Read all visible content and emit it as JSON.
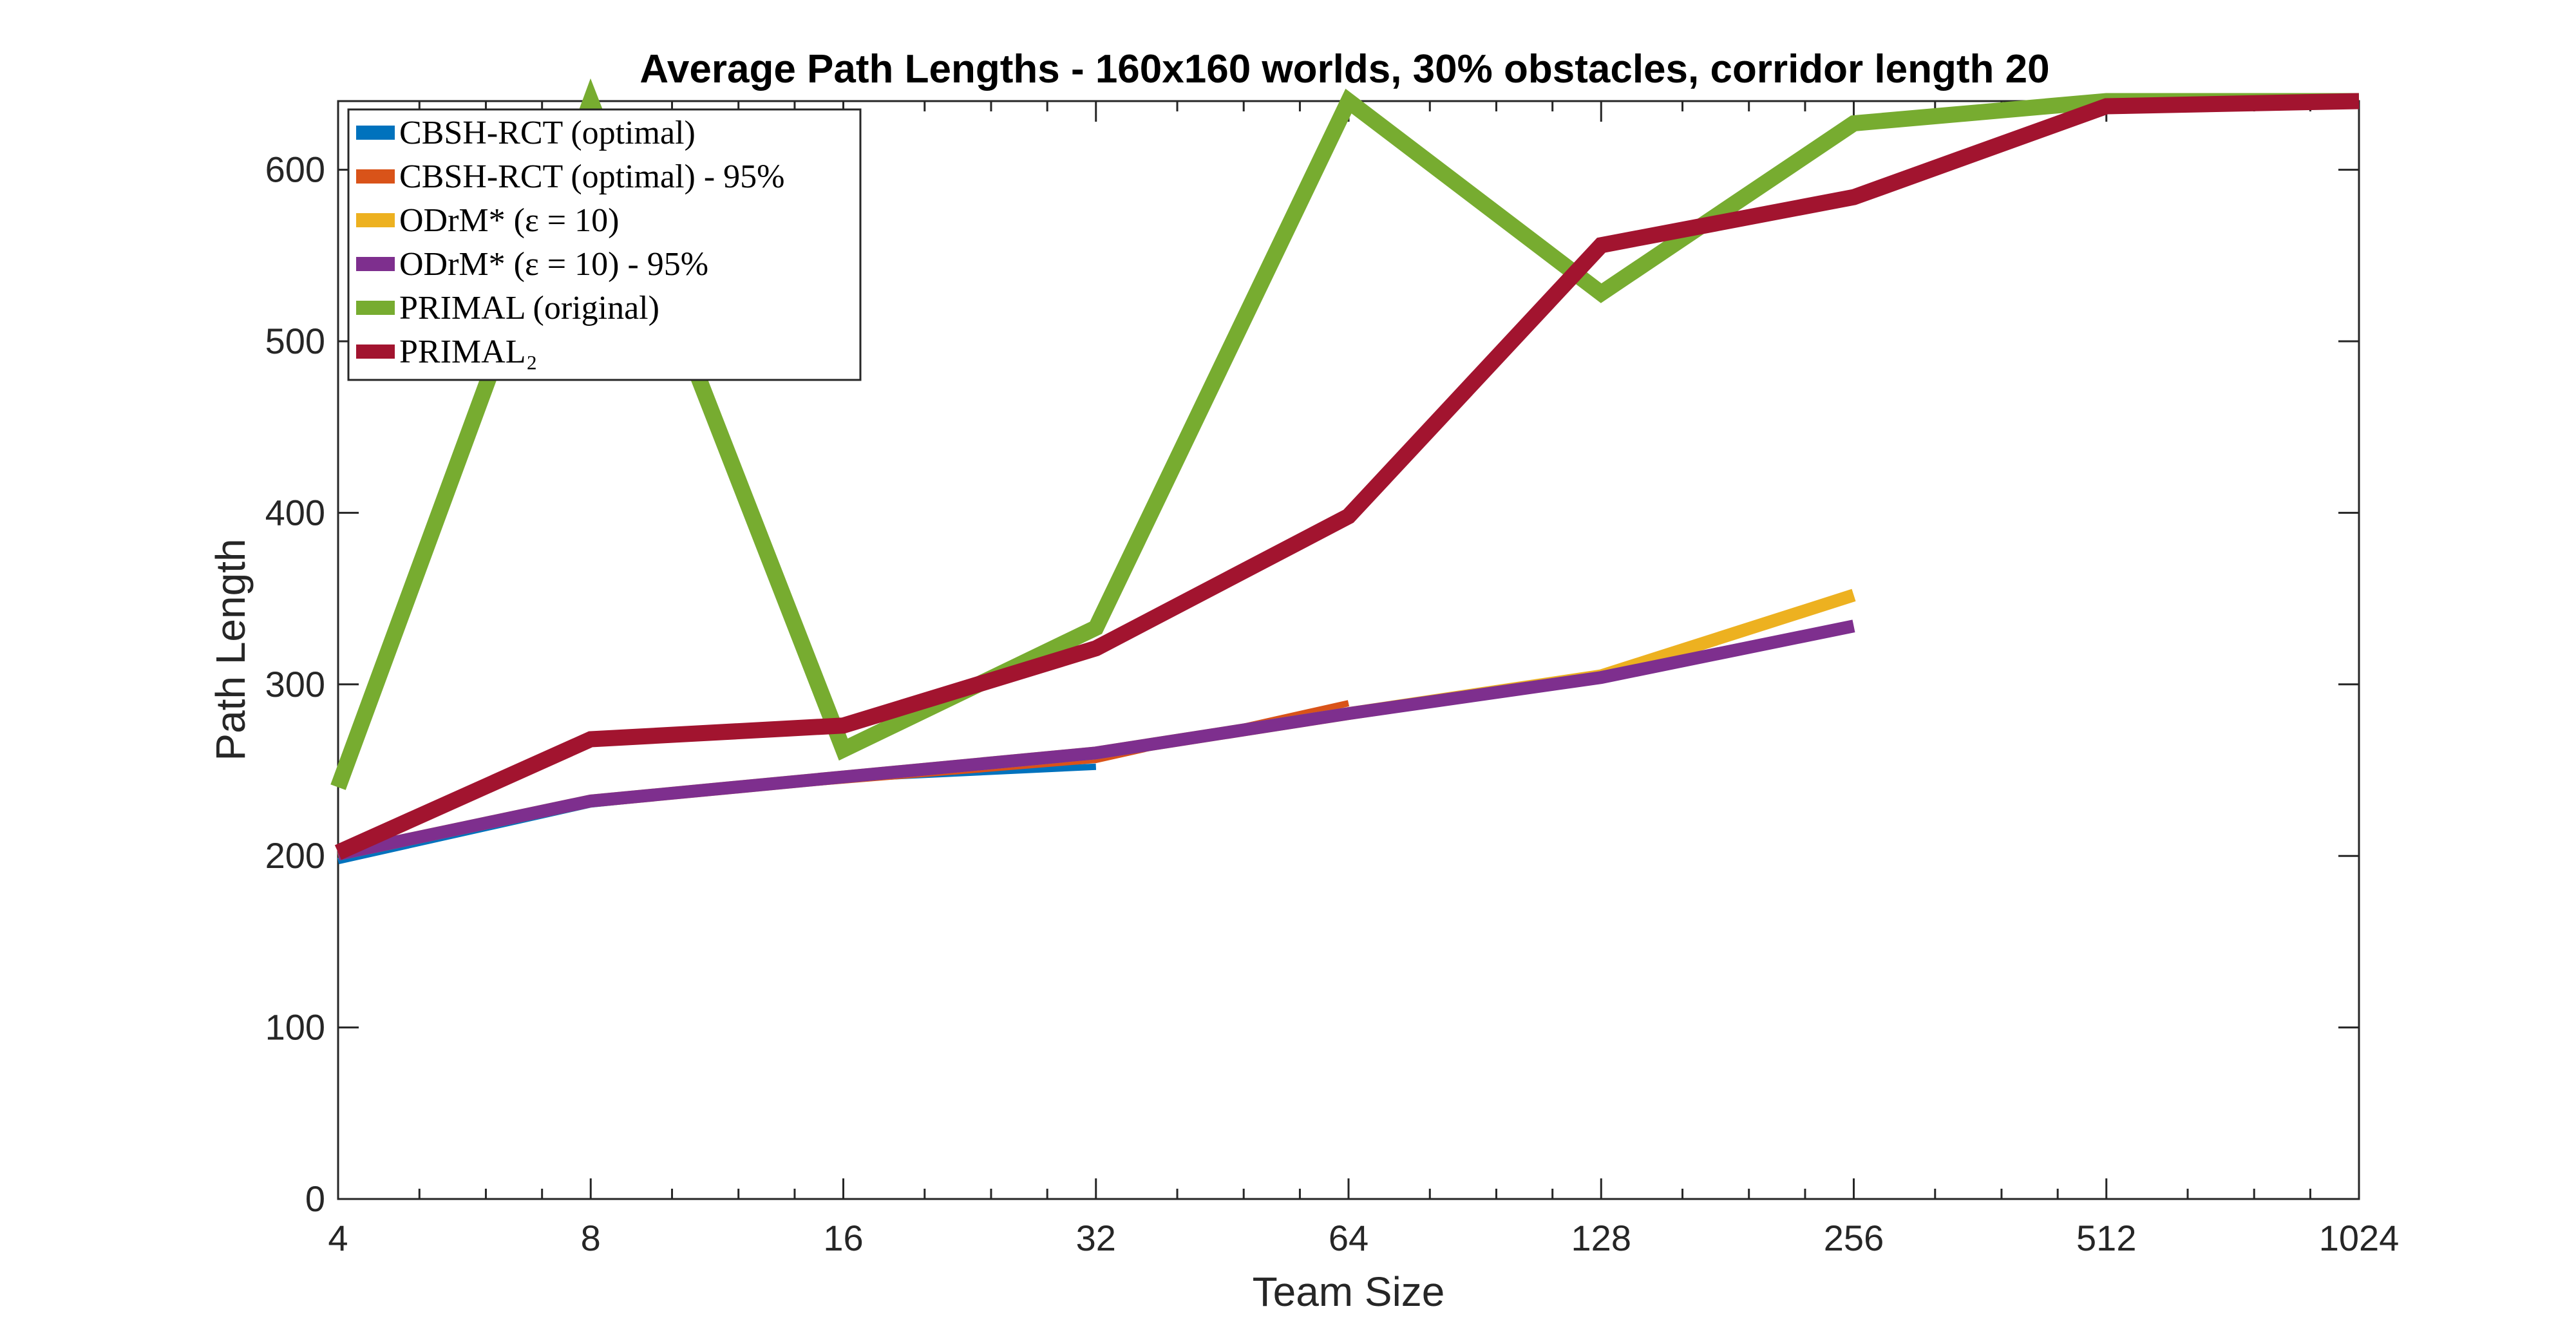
{
  "chart_data": {
    "type": "line",
    "title": "Average Path Lengths - 160x160 worlds, 30% obstacles, corridor length 20",
    "xlabel": "Team Size",
    "ylabel": "Path Length",
    "xscale": "log2",
    "xlim": [
      4,
      1024
    ],
    "ylim": [
      0,
      640
    ],
    "x_ticks": [
      "4",
      "8",
      "16",
      "32",
      "64",
      "128",
      "256",
      "512",
      "1024"
    ],
    "y_ticks": [
      "0",
      "100",
      "200",
      "300",
      "400",
      "500",
      "600"
    ],
    "grid": false,
    "legend_position": "top-left",
    "series": [
      {
        "name": "CBSH-RCT (optimal)",
        "color": "#0072BD",
        "x": [
          4,
          8,
          16,
          32
        ],
        "y": [
          197,
          230,
          245,
          252
        ]
      },
      {
        "name": "CBSH-RCT (optimal) - 95%",
        "color": "#D95319",
        "x": [
          4,
          8,
          16,
          32,
          64
        ],
        "y": [
          200,
          232,
          244,
          256,
          289
        ]
      },
      {
        "name": "ODrM* (ε = 10)",
        "color": "#EDB120",
        "x": [
          4,
          8,
          16,
          32,
          64,
          128,
          256
        ],
        "y": [
          201,
          232,
          246,
          260,
          283,
          305,
          352
        ]
      },
      {
        "name": "ODrM* (ε = 10) - 95%",
        "color": "#7E2F8E",
        "x": [
          4,
          8,
          16,
          32,
          64,
          128,
          256
        ],
        "y": [
          201,
          232,
          246,
          260,
          283,
          304,
          334
        ]
      },
      {
        "name": "PRIMAL (original)",
        "color": "#77AC30",
        "x": [
          4,
          8,
          16,
          32,
          64,
          128,
          256,
          512,
          1024
        ],
        "y": [
          240,
          640,
          262,
          333,
          640,
          528,
          627,
          640,
          640
        ]
      },
      {
        "name": "PRIMAL₂",
        "color": "#A2142F",
        "x": [
          4,
          8,
          16,
          32,
          64,
          128,
          256,
          512,
          1024
        ],
        "y": [
          202,
          268,
          276,
          321,
          398,
          556,
          584,
          637,
          640
        ]
      }
    ]
  }
}
